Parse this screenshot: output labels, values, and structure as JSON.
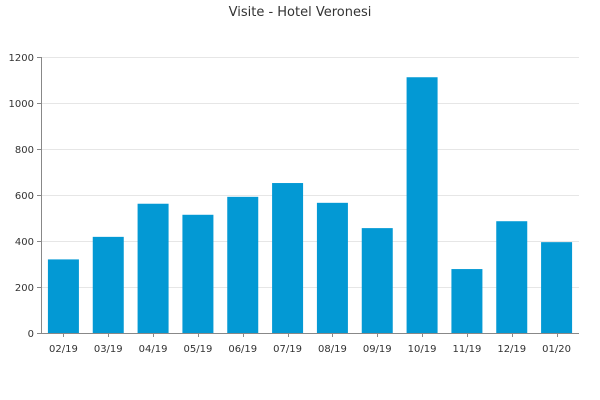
{
  "chart_data": {
    "type": "bar",
    "title": "Visite - Hotel Veronesi",
    "xlabel": "",
    "ylabel": "",
    "categories": [
      "02/19",
      "03/19",
      "04/19",
      "05/19",
      "06/19",
      "07/19",
      "08/19",
      "09/19",
      "10/19",
      "11/19",
      "12/19",
      "01/20"
    ],
    "values": [
      320,
      418,
      562,
      514,
      592,
      652,
      566,
      456,
      1112,
      278,
      486,
      395
    ],
    "ylim": [
      0,
      1200
    ],
    "yticks": [
      0,
      200,
      400,
      600,
      800,
      1000,
      1200
    ],
    "grid": true,
    "legend": "none",
    "colors": {
      "bar": "#0399d4",
      "grid": "#e6e6e6",
      "axis": "#888888",
      "text": "#333333"
    }
  }
}
